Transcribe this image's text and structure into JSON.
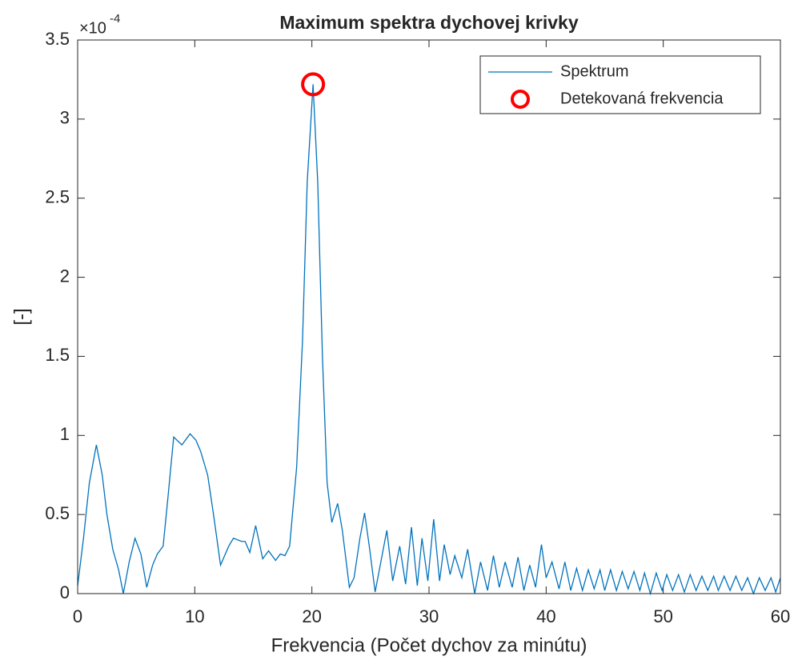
{
  "chart_data": {
    "type": "line",
    "title": "Maximum spektra dychovej krivky",
    "xlabel": "Frekvencia (Počet dychov za minútu)",
    "ylabel": "[-]",
    "y_scale": {
      "base": "×10",
      "exponent": "-4"
    },
    "xlim": [
      0,
      60
    ],
    "xticks": [
      0,
      10,
      20,
      30,
      40,
      50,
      60
    ],
    "ylim": [
      0,
      3.5
    ],
    "yticks": [
      0,
      0.5,
      1,
      1.5,
      2,
      2.5,
      3,
      3.5
    ],
    "legend": "upper right",
    "series": [
      {
        "name": "Spektrum",
        "color": "#0072bd",
        "type": "line",
        "x": [
          0,
          0.5,
          1.0,
          1.6,
          2.1,
          2.5,
          3.0,
          3.5,
          3.9,
          4.4,
          4.9,
          5.4,
          5.9,
          6.4,
          6.8,
          7.3,
          7.7,
          8.2,
          8.9,
          9.6,
          10.1,
          10.5,
          11.1,
          11.6,
          12.2,
          12.9,
          13.3,
          14.0,
          14.3,
          14.7,
          15.2,
          15.8,
          16.3,
          16.9,
          17.3,
          17.7,
          18.1,
          18.7,
          19.2,
          19.6,
          20.1,
          20.5,
          20.9,
          21.3,
          21.7,
          22.2,
          22.6,
          23.2,
          23.6,
          24.1,
          24.5,
          24.9,
          25.4,
          26.4,
          26.9,
          27.5,
          28.0,
          28.5,
          29.0,
          29.4,
          29.9,
          30.4,
          30.9,
          31.3,
          31.8,
          32.2,
          32.8,
          33.3,
          33.9,
          34.4,
          35.0,
          35.5,
          36.0,
          36.5,
          37.1,
          37.6,
          38.1,
          38.6,
          39.1,
          39.6,
          40.0,
          40.5,
          41.1,
          41.6,
          42.1,
          42.6,
          43.1,
          43.6,
          44.1,
          44.6,
          45.0,
          45.5,
          46.0,
          46.5,
          47.0,
          47.5,
          48.0,
          48.4,
          48.9,
          49.4,
          49.9,
          50.3,
          50.8,
          51.3,
          51.8,
          52.3,
          52.8,
          53.3,
          53.8,
          54.3,
          54.7,
          55.2,
          55.7,
          56.2,
          56.7,
          57.2,
          57.7,
          58.2,
          58.7,
          59.2,
          59.6,
          60.0
        ],
        "values": [
          0.05,
          0.35,
          0.7,
          0.94,
          0.75,
          0.5,
          0.28,
          0.15,
          0.0,
          0.2,
          0.35,
          0.25,
          0.04,
          0.18,
          0.25,
          0.3,
          0.6,
          0.99,
          0.94,
          1.01,
          0.97,
          0.9,
          0.75,
          0.5,
          0.18,
          0.3,
          0.35,
          0.33,
          0.33,
          0.26,
          0.43,
          0.22,
          0.27,
          0.21,
          0.25,
          0.24,
          0.3,
          0.8,
          1.6,
          2.6,
          3.22,
          2.6,
          1.5,
          0.7,
          0.45,
          0.57,
          0.4,
          0.04,
          0.1,
          0.35,
          0.51,
          0.3,
          0.01,
          0.4,
          0.08,
          0.3,
          0.06,
          0.42,
          0.05,
          0.35,
          0.08,
          0.47,
          0.08,
          0.31,
          0.12,
          0.24,
          0.1,
          0.28,
          0.0,
          0.2,
          0.02,
          0.24,
          0.04,
          0.2,
          0.04,
          0.23,
          0.02,
          0.18,
          0.04,
          0.31,
          0.1,
          0.2,
          0.03,
          0.2,
          0.02,
          0.16,
          0.02,
          0.15,
          0.03,
          0.15,
          0.02,
          0.15,
          0.02,
          0.14,
          0.03,
          0.14,
          0.02,
          0.13,
          0.0,
          0.13,
          0.02,
          0.12,
          0.02,
          0.12,
          0.01,
          0.12,
          0.02,
          0.11,
          0.02,
          0.11,
          0.02,
          0.11,
          0.02,
          0.11,
          0.02,
          0.1,
          0.0,
          0.1,
          0.02,
          0.1,
          0.01,
          0.1
        ]
      },
      {
        "name": "Detekovaná frekvencia",
        "color": "#ff0000",
        "type": "scatter",
        "x": [
          20.1
        ],
        "values": [
          3.22
        ]
      }
    ]
  }
}
